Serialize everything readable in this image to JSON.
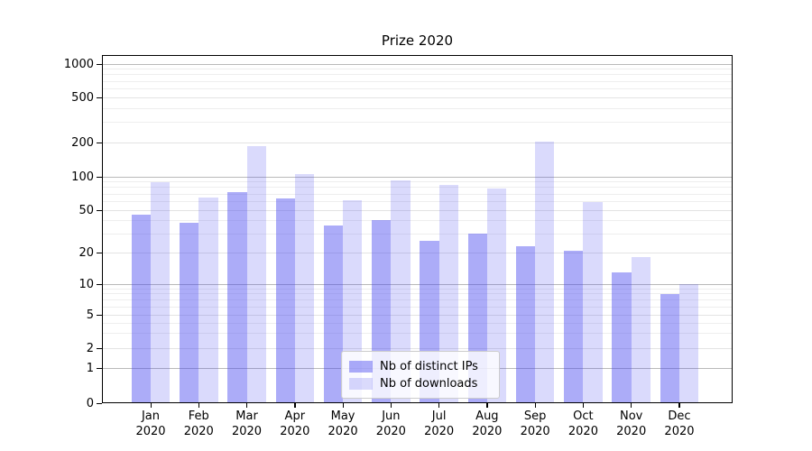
{
  "title": "Prize 2020",
  "legend": {
    "items": [
      {
        "label": "Nb of distinct IPs",
        "color": "rgba(70,70,240,0.45)"
      },
      {
        "label": "Nb of downloads",
        "color": "rgba(70,70,240,0.20)"
      }
    ]
  },
  "axes": {
    "ytick_labels": [
      "0",
      "1",
      "2",
      "5",
      "10",
      "20",
      "50",
      "100",
      "200",
      "500",
      "1000"
    ],
    "xtick_year": "2020",
    "xtick_months": [
      "Jan",
      "Feb",
      "Mar",
      "Apr",
      "May",
      "Jun",
      "Jul",
      "Aug",
      "Sep",
      "Oct",
      "Nov",
      "Dec"
    ]
  },
  "colors": {
    "ips_bar": "rgba(70,70,240,0.45)",
    "downloads_bar": "rgba(70,70,240,0.20)",
    "major_grid": "#b9b9b9",
    "labeled_grid": "#e3e3e3",
    "minor_grid": "#eeeeee",
    "spine": "#000000",
    "legend_border": "#cccccc"
  },
  "chart_data": {
    "type": "bar",
    "title": "Prize 2020",
    "categories": [
      "Jan 2020",
      "Feb 2020",
      "Mar 2020",
      "Apr 2020",
      "May 2020",
      "Jun 2020",
      "Jul 2020",
      "Aug 2020",
      "Sep 2020",
      "Oct 2020",
      "Nov 2020",
      "Dec 2020"
    ],
    "series": [
      {
        "name": "Nb of distinct IPs",
        "values": [
          45,
          38,
          73,
          64,
          36,
          40,
          26,
          30,
          23,
          21,
          13,
          8
        ]
      },
      {
        "name": "Nb of downloads",
        "values": [
          90,
          65,
          187,
          106,
          62,
          93,
          85,
          78,
          202,
          59,
          18,
          10
        ]
      }
    ],
    "xlabel": "",
    "ylabel": "",
    "yscale": "log-like (labeled ticks 0,1,2,5,10,20,50,100,200,500,1000)",
    "ytick_values": [
      0,
      1,
      2,
      5,
      10,
      20,
      50,
      100,
      200,
      500,
      1000
    ],
    "minor_grid_values": [
      3,
      4,
      6,
      7,
      8,
      9,
      30,
      40,
      60,
      70,
      80,
      90,
      300,
      400,
      600,
      700,
      800,
      900
    ],
    "ylim": [
      0,
      1100
    ],
    "grid": true,
    "legend_position": "lower center"
  }
}
